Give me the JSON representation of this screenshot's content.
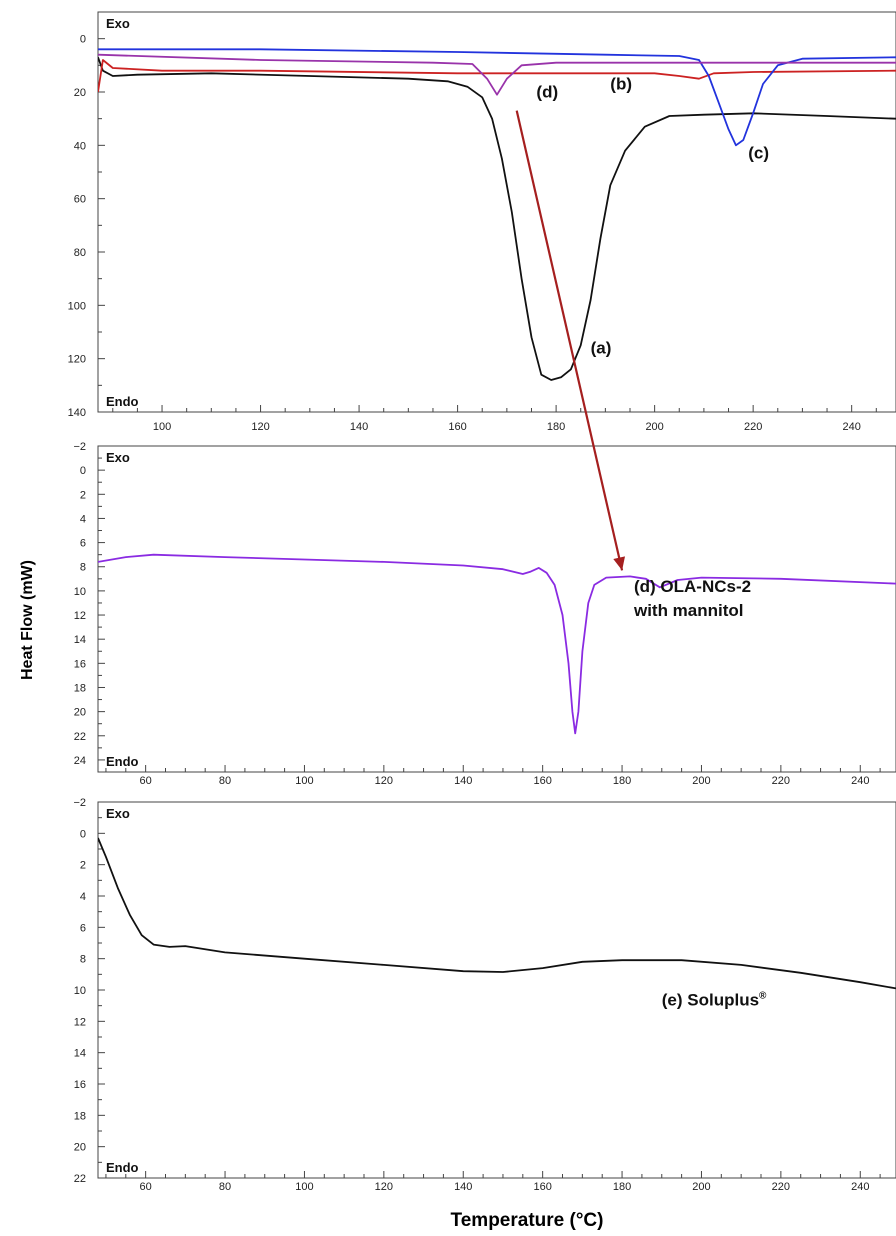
{
  "figure": {
    "ylabel": "Heat Flow (mW)",
    "xlabel": "Temperature (°C)"
  },
  "chart_data": [
    {
      "type": "line",
      "panel": "top",
      "xlim": [
        87,
        249
      ],
      "ylim": [
        -10,
        140
      ],
      "y_inverted": true,
      "x_ticks": [
        100,
        120,
        140,
        160,
        180,
        200,
        220,
        240
      ],
      "y_ticks": [
        0,
        20,
        40,
        60,
        80,
        100,
        120,
        140
      ],
      "exo_label": "Exo",
      "endo_label": "Endo",
      "series": [
        {
          "label": "(a)",
          "color": "#111111",
          "points": [
            [
              87,
              7
            ],
            [
              88,
              12
            ],
            [
              90,
              14
            ],
            [
              95,
              13.5
            ],
            [
              110,
              13
            ],
            [
              130,
              14
            ],
            [
              150,
              15
            ],
            [
              158,
              16
            ],
            [
              162,
              18
            ],
            [
              165,
              22
            ],
            [
              167,
              30
            ],
            [
              169,
              45
            ],
            [
              171,
              65
            ],
            [
              173,
              90
            ],
            [
              175,
              112
            ],
            [
              177,
              126
            ],
            [
              179,
              128
            ],
            [
              181,
              127
            ],
            [
              183,
              124
            ],
            [
              185,
              115
            ],
            [
              187,
              98
            ],
            [
              189,
              75
            ],
            [
              191,
              55
            ],
            [
              194,
              42
            ],
            [
              198,
              33
            ],
            [
              203,
              29
            ],
            [
              210,
              28.5
            ],
            [
              220,
              28
            ],
            [
              235,
              29
            ],
            [
              249,
              30
            ]
          ]
        },
        {
          "label": "(b)",
          "color": "#cc2222",
          "points": [
            [
              87,
              20
            ],
            [
              88,
              8
            ],
            [
              90,
              11
            ],
            [
              100,
              12
            ],
            [
              120,
              12
            ],
            [
              160,
              13
            ],
            [
              200,
              13
            ],
            [
              205,
              14
            ],
            [
              209,
              15
            ],
            [
              212,
              13
            ],
            [
              220,
              12.5
            ],
            [
              249,
              12
            ]
          ]
        },
        {
          "label": "(c)",
          "color": "#2233dd",
          "points": [
            [
              87,
              4
            ],
            [
              120,
              4
            ],
            [
              160,
              5
            ],
            [
              190,
              6
            ],
            [
              205,
              6.5
            ],
            [
              209,
              8
            ],
            [
              211,
              14
            ],
            [
              213,
              24
            ],
            [
              215,
              34
            ],
            [
              216.5,
              40
            ],
            [
              218,
              38
            ],
            [
              220,
              28
            ],
            [
              222,
              17
            ],
            [
              225,
              10
            ],
            [
              230,
              7.5
            ],
            [
              249,
              7
            ]
          ]
        },
        {
          "label": "(d)",
          "color": "#9933aa",
          "points": [
            [
              87,
              6
            ],
            [
              120,
              8
            ],
            [
              155,
              9
            ],
            [
              163,
              9.5
            ],
            [
              166,
              15
            ],
            [
              168,
              21
            ],
            [
              170,
              15
            ],
            [
              173,
              10
            ],
            [
              180,
              9
            ],
            [
              200,
              9
            ],
            [
              249,
              9
            ]
          ]
        }
      ],
      "annotations": [
        {
          "text": "(d)",
          "x": 176,
          "y": 22
        },
        {
          "text": "(b)",
          "x": 191,
          "y": 19
        },
        {
          "text": "(c)",
          "x": 219,
          "y": 45
        },
        {
          "text": "(a)",
          "x": 187,
          "y": 118
        }
      ]
    },
    {
      "type": "line",
      "panel": "middle",
      "xlim": [
        48,
        249
      ],
      "ylim": [
        -2,
        25
      ],
      "y_inverted": true,
      "x_ticks": [
        60,
        80,
        100,
        120,
        140,
        160,
        180,
        200,
        220,
        240
      ],
      "y_ticks": [
        -2,
        0,
        2,
        4,
        6,
        8,
        10,
        12,
        14,
        16,
        18,
        20,
        22,
        24
      ],
      "exo_label": "Exo",
      "endo_label": "Endo",
      "series": [
        {
          "label": "(d) OLA-NCs-2 with mannitol",
          "color": "#8a2be2",
          "points": [
            [
              48,
              7.6
            ],
            [
              55,
              7.2
            ],
            [
              62,
              7
            ],
            [
              80,
              7.2
            ],
            [
              100,
              7.4
            ],
            [
              120,
              7.6
            ],
            [
              140,
              7.9
            ],
            [
              150,
              8.2
            ],
            [
              155,
              8.6
            ],
            [
              157,
              8.4
            ],
            [
              159,
              8.1
            ],
            [
              161,
              8.5
            ],
            [
              163,
              9.5
            ],
            [
              165,
              12
            ],
            [
              166.5,
              16
            ],
            [
              167.5,
              20
            ],
            [
              168.2,
              21.8
            ],
            [
              169,
              20
            ],
            [
              170,
              15
            ],
            [
              171.5,
              11
            ],
            [
              173,
              9.5
            ],
            [
              176,
              8.9
            ],
            [
              182,
              8.8
            ],
            [
              186,
              9
            ],
            [
              188,
              9.4
            ],
            [
              189.5,
              9.7
            ],
            [
              191,
              9.5
            ],
            [
              194,
              9.1
            ],
            [
              200,
              8.9
            ],
            [
              220,
              9
            ],
            [
              249,
              9.4
            ]
          ]
        }
      ],
      "annotations": [
        {
          "text": "(d) OLA-NCs-2",
          "x": 183,
          "y": 10.1
        },
        {
          "text": "with mannitol",
          "x": 183,
          "y": 12.1
        }
      ]
    },
    {
      "type": "line",
      "panel": "bottom",
      "xlim": [
        48,
        249
      ],
      "ylim": [
        -2,
        22
      ],
      "y_inverted": true,
      "x_ticks": [
        60,
        80,
        100,
        120,
        140,
        160,
        180,
        200,
        220,
        240
      ],
      "y_ticks": [
        -2,
        0,
        2,
        4,
        6,
        8,
        10,
        12,
        14,
        16,
        18,
        20,
        22
      ],
      "exo_label": "Exo",
      "endo_label": "Endo",
      "series": [
        {
          "label": "(e) Soluplus®",
          "color": "#111111",
          "points": [
            [
              48,
              0.3
            ],
            [
              50,
              1.5
            ],
            [
              53,
              3.5
            ],
            [
              56,
              5.2
            ],
            [
              59,
              6.5
            ],
            [
              62,
              7.1
            ],
            [
              66,
              7.25
            ],
            [
              70,
              7.2
            ],
            [
              80,
              7.6
            ],
            [
              100,
              8
            ],
            [
              120,
              8.4
            ],
            [
              140,
              8.8
            ],
            [
              150,
              8.85
            ],
            [
              160,
              8.6
            ],
            [
              170,
              8.2
            ],
            [
              180,
              8.1
            ],
            [
              195,
              8.1
            ],
            [
              210,
              8.4
            ],
            [
              225,
              8.9
            ],
            [
              240,
              9.5
            ],
            [
              249,
              9.9
            ]
          ]
        }
      ],
      "annotations": [
        {
          "text": "(e) Soluplus®",
          "x": 190,
          "y": 11
        }
      ]
    }
  ]
}
